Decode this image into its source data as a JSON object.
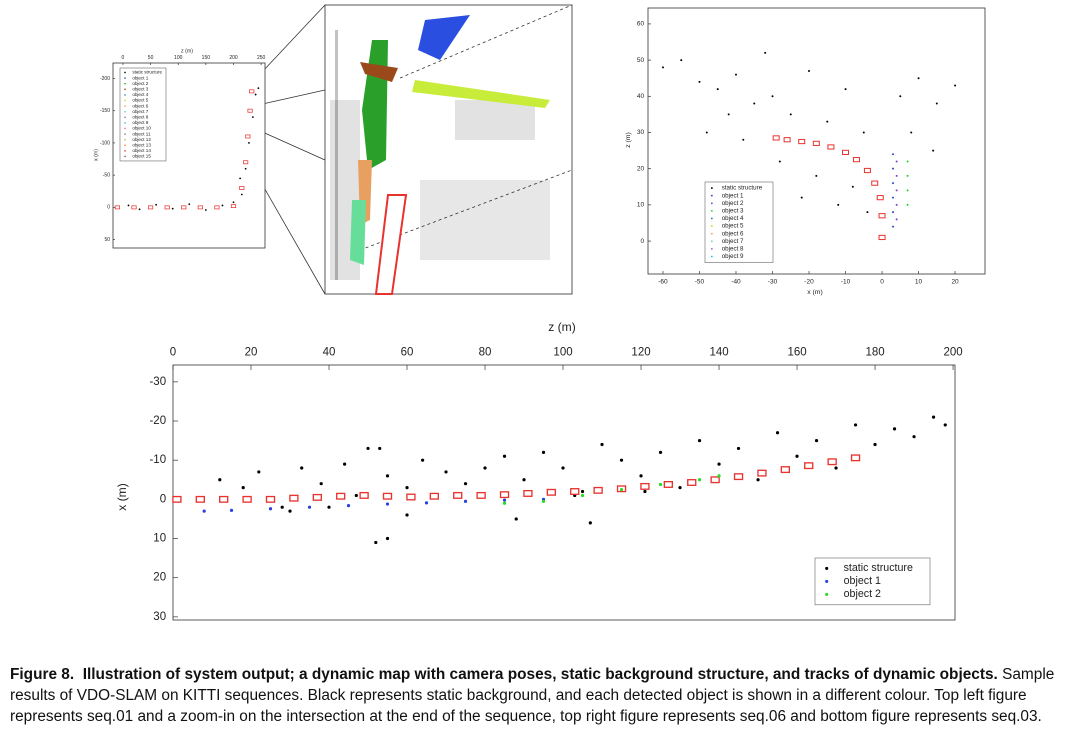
{
  "chart_data": [
    {
      "type": "scatter",
      "xlabel": "z (m)",
      "ylabel": "x (m)",
      "xaxis_position": "top",
      "xlim": [
        -18,
        257
      ],
      "ylim": [
        63,
        -224
      ],
      "xticks": [
        0,
        50,
        100,
        150,
        200,
        250
      ],
      "yticks": [
        -200,
        -150,
        -100,
        -50,
        0,
        50
      ],
      "legend": "upper left",
      "series": [
        {
          "name": "static structure",
          "color": "#000000",
          "x": [
            10,
            30,
            60,
            90,
            120,
            150,
            180,
            200,
            215,
            222,
            228,
            235,
            240,
            212,
            245
          ],
          "values": [
            -3,
            3,
            -4,
            2,
            -5,
            4,
            -3,
            -8,
            -20,
            -60,
            -100,
            -140,
            -175,
            -45,
            -185
          ]
        },
        {
          "color": "#e8322e",
          "marker": "camera",
          "x": [
            -10,
            20,
            50,
            80,
            110,
            140,
            170,
            200,
            215,
            222,
            226,
            230,
            233
          ],
          "values": [
            0,
            0,
            0,
            0,
            0,
            0,
            0,
            -2,
            -30,
            -70,
            -110,
            -150,
            -180
          ]
        },
        {
          "name": "object  1",
          "color": "#3050d0",
          "x": [],
          "values": []
        },
        {
          "name": "object  2",
          "color": "#2ca02c",
          "x": [],
          "values": []
        },
        {
          "name": "object  3",
          "color": "#8b4513",
          "x": [],
          "values": []
        },
        {
          "name": "object  4",
          "color": "#1f77b4",
          "x": [],
          "values": []
        },
        {
          "name": "object  5",
          "color": "#b5e61d",
          "x": [],
          "values": []
        },
        {
          "name": "object  6",
          "color": "#f0a050",
          "x": [],
          "values": []
        },
        {
          "name": "object  7",
          "color": "#66dd99",
          "x": [],
          "values": []
        },
        {
          "name": "object  8",
          "color": "#9467bd",
          "x": [],
          "values": []
        },
        {
          "name": "object  9",
          "color": "#17becf",
          "x": [],
          "values": []
        },
        {
          "name": "object  10",
          "color": "#e377c2",
          "x": [],
          "values": []
        },
        {
          "name": "object  11",
          "color": "#7f7f7f",
          "x": [],
          "values": []
        },
        {
          "name": "object  12",
          "color": "#bcbd22",
          "x": [],
          "values": []
        },
        {
          "name": "object  13",
          "color": "#ff7f0e",
          "x": [],
          "values": []
        },
        {
          "name": "object  14",
          "color": "#d62728",
          "x": [],
          "values": []
        },
        {
          "name": "object  15",
          "color": "#8c564b",
          "x": [],
          "values": []
        }
      ]
    },
    {
      "type": "scatter",
      "xlabel": "x (m)",
      "ylabel": "z (m)",
      "xaxis_position": "bottom",
      "xlim": [
        -64.1,
        28.2
      ],
      "ylim": [
        -9.1,
        64.4
      ],
      "xticks": [
        -60,
        -50,
        -40,
        -30,
        -20,
        -10,
        0,
        10,
        20
      ],
      "yticks": [
        0,
        10,
        20,
        30,
        40,
        50,
        60
      ],
      "legend": "lower left",
      "series": [
        {
          "name": "static structure",
          "color": "#000000",
          "x": [
            -60,
            -55,
            -50,
            -45,
            -40,
            -35,
            -30,
            -25,
            -20,
            -15,
            -10,
            -5,
            5,
            10,
            15,
            20,
            -48,
            -38,
            -28,
            -18,
            -8,
            -22,
            -12,
            -4,
            8,
            14,
            -42,
            -32
          ],
          "values": [
            48,
            50,
            44,
            42,
            46,
            38,
            40,
            35,
            47,
            33,
            42,
            30,
            40,
            45,
            38,
            43,
            30,
            28,
            22,
            18,
            15,
            12,
            10,
            8,
            30,
            25,
            35,
            52
          ]
        },
        {
          "color": "#e8322e",
          "marker": "camera",
          "x": [
            -29,
            -26,
            -22,
            -18,
            -14,
            -10,
            -7,
            -4,
            -2,
            -0.5,
            0,
            0
          ],
          "values": [
            28.5,
            28,
            27.5,
            27,
            26,
            24.5,
            22.5,
            19.5,
            16,
            12,
            7,
            1
          ]
        },
        {
          "name": "object  1",
          "color": "#3344cc",
          "x": [
            3,
            3,
            3,
            3,
            3,
            3
          ],
          "values": [
            4,
            8,
            12,
            16,
            20,
            24
          ]
        },
        {
          "name": "object  2",
          "color": "#7a3fd0",
          "x": [
            4,
            4,
            4,
            4,
            4
          ],
          "values": [
            6,
            10,
            14,
            18,
            22
          ]
        },
        {
          "name": "object  3",
          "color": "#22cc33",
          "x": [
            7,
            7,
            7,
            7
          ],
          "values": [
            10,
            14,
            18,
            22
          ]
        },
        {
          "name": "object  4",
          "color": "#1f77b4",
          "x": [],
          "values": []
        },
        {
          "name": "object  5",
          "color": "#b5e61d",
          "x": [],
          "values": []
        },
        {
          "name": "object  6",
          "color": "#f0a050",
          "x": [],
          "values": []
        },
        {
          "name": "object  7",
          "color": "#66dd99",
          "x": [],
          "values": []
        },
        {
          "name": "object  8",
          "color": "#9467bd",
          "x": [],
          "values": []
        },
        {
          "name": "object  9",
          "color": "#17becf",
          "x": [],
          "values": []
        }
      ]
    },
    {
      "type": "scatter",
      "xlabel": "z (m)",
      "ylabel": "x (m)",
      "xaxis_position": "top",
      "xlim": [
        0,
        200.5
      ],
      "ylim": [
        30.8,
        -34.3
      ],
      "xticks": [
        0,
        20,
        40,
        60,
        80,
        100,
        120,
        140,
        160,
        180,
        200
      ],
      "yticks": [
        -30,
        -20,
        -10,
        0,
        10,
        20,
        30
      ],
      "legend": "lower right",
      "series": [
        {
          "name": "static structure",
          "color": "#000000",
          "x": [
            12,
            18,
            22,
            28,
            33,
            38,
            44,
            47,
            50,
            55,
            60,
            64,
            70,
            75,
            80,
            85,
            90,
            95,
            100,
            105,
            110,
            115,
            120,
            125,
            130,
            135,
            140,
            145,
            150,
            155,
            160,
            165,
            170,
            175,
            180,
            185,
            190,
            195,
            198,
            52,
            55,
            103,
            107,
            53,
            121,
            30,
            40,
            60,
            88
          ],
          "values": [
            -5,
            -3,
            -7,
            2,
            -8,
            -4,
            -9,
            -1,
            -13,
            -6,
            -3,
            -10,
            -7,
            -4,
            -8,
            -11,
            -5,
            -12,
            -8,
            -2,
            -14,
            -10,
            -6,
            -12,
            -3,
            -15,
            -9,
            -13,
            -5,
            -17,
            -11,
            -15,
            -8,
            -19,
            -14,
            -18,
            -16,
            -21,
            -19,
            11,
            10,
            -1,
            6,
            -13,
            -2,
            3,
            2,
            4,
            5
          ]
        },
        {
          "color": "#e8322e",
          "marker": "camera",
          "x": [
            1,
            7,
            13,
            19,
            25,
            31,
            37,
            43,
            49,
            55,
            61,
            67,
            73,
            79,
            85,
            91,
            97,
            103,
            109,
            115,
            121,
            127,
            133,
            139,
            145,
            151,
            157,
            163,
            169,
            175
          ],
          "values": [
            0,
            0,
            0,
            0,
            0,
            -0.3,
            -0.5,
            -0.8,
            -1,
            -0.8,
            -0.6,
            -0.8,
            -1,
            -1,
            -1.2,
            -1.5,
            -1.8,
            -2,
            -2.3,
            -2.7,
            -3.3,
            -3.8,
            -4.3,
            -5,
            -5.8,
            -6.7,
            -7.6,
            -8.6,
            -9.6,
            -10.6
          ]
        },
        {
          "name": "object  1",
          "color": "#2a3fe0",
          "x": [
            8,
            15,
            25,
            35,
            45,
            55,
            65,
            75,
            85,
            95
          ],
          "values": [
            3,
            2.8,
            2.4,
            2,
            1.6,
            1.2,
            0.9,
            0.5,
            0.2,
            0
          ]
        },
        {
          "name": "object  2",
          "color": "#22dd22",
          "x": [
            85,
            95,
            105,
            115,
            125,
            135,
            140
          ],
          "values": [
            1,
            0.5,
            -1,
            -2.5,
            -3.8,
            -5,
            -6
          ]
        }
      ]
    }
  ],
  "caption": {
    "label": "Figure 8.",
    "title": "Illustration of system output; a dynamic map with camera poses, static background structure, and tracks of dynamic objects.",
    "text": "Sample results of VDO-SLAM on KITTI sequences. Black represents static background, and each detected object is shown in a different colour. Top left figure represents seq.01 and a zoom-in on the intersection at the end of the sequence, top right figure represents seq.06 and bottom figure represents seq.03."
  }
}
